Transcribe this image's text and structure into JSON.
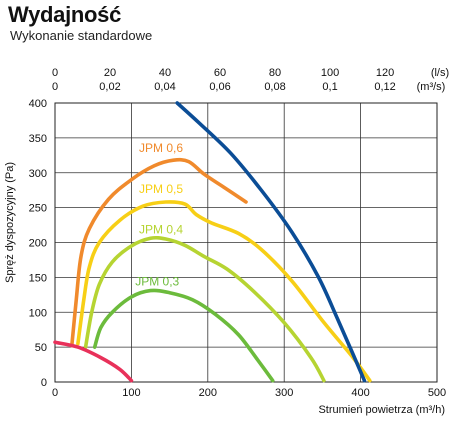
{
  "header": {
    "title": "Wydajność",
    "subtitle": "Wykonanie standardowe"
  },
  "chart_data": {
    "type": "line",
    "xlabel": "Strumień powietrza (m³/h)",
    "ylabel": "Spręż dyspozycyjny (Pa)",
    "xlim": [
      0,
      500
    ],
    "ylim": [
      0,
      400
    ],
    "x_ticks": [
      0,
      100,
      200,
      300,
      400,
      500
    ],
    "y_ticks": [
      0,
      50,
      100,
      150,
      200,
      250,
      300,
      350,
      400
    ],
    "grid": true,
    "top_axis_ls": {
      "unit": "(l/s)",
      "ticks": [
        "0",
        "20",
        "40",
        "60",
        "80",
        "100",
        "120"
      ],
      "values": [
        0,
        20,
        40,
        60,
        80,
        100,
        120
      ]
    },
    "top_axis_m3s": {
      "unit": "(m³/s)",
      "ticks": [
        "0",
        "0,02",
        "0,04",
        "0,06",
        "0,08",
        "0,1",
        "0,12"
      ],
      "values": [
        0,
        0.02,
        0.04,
        0.06,
        0.08,
        0.1,
        0.12
      ]
    },
    "series": [
      {
        "name": "JPM 0,6",
        "color": "#f08a2c",
        "points": [
          [
            22,
            52
          ],
          [
            28,
            120
          ],
          [
            34,
            180
          ],
          [
            45,
            220
          ],
          [
            70,
            262
          ],
          [
            100,
            290
          ],
          [
            130,
            310
          ],
          [
            155,
            318
          ],
          [
            175,
            316
          ],
          [
            195,
            298
          ],
          [
            220,
            280
          ],
          [
            250,
            258
          ]
        ]
      },
      {
        "name": "JPM 0,5",
        "color": "#f7cf16",
        "points": [
          [
            30,
            55
          ],
          [
            38,
            120
          ],
          [
            45,
            165
          ],
          [
            58,
            200
          ],
          [
            85,
            232
          ],
          [
            115,
            252
          ],
          [
            145,
            258
          ],
          [
            170,
            255
          ],
          [
            185,
            240
          ],
          [
            205,
            228
          ],
          [
            240,
            213
          ],
          [
            270,
            190
          ],
          [
            310,
            145
          ],
          [
            350,
            88
          ],
          [
            390,
            35
          ],
          [
            412,
            2
          ]
        ]
      },
      {
        "name": "JPM 0,4",
        "color": "#b6d432",
        "points": [
          [
            40,
            50
          ],
          [
            48,
            100
          ],
          [
            58,
            140
          ],
          [
            75,
            172
          ],
          [
            100,
            195
          ],
          [
            125,
            206
          ],
          [
            145,
            205
          ],
          [
            170,
            196
          ],
          [
            195,
            180
          ],
          [
            225,
            162
          ],
          [
            260,
            130
          ],
          [
            300,
            85
          ],
          [
            335,
            35
          ],
          [
            352,
            2
          ]
        ]
      },
      {
        "name": "JPM 0,3",
        "color": "#6cbb3c",
        "points": [
          [
            52,
            50
          ],
          [
            60,
            78
          ],
          [
            75,
            100
          ],
          [
            100,
            122
          ],
          [
            125,
            131
          ],
          [
            150,
            128
          ],
          [
            180,
            118
          ],
          [
            210,
            97
          ],
          [
            240,
            68
          ],
          [
            265,
            32
          ],
          [
            285,
            2
          ]
        ]
      },
      {
        "name": "",
        "color": "#0b4d96",
        "points": [
          [
            160,
            400
          ],
          [
            190,
            370
          ],
          [
            230,
            328
          ],
          [
            270,
            275
          ],
          [
            310,
            215
          ],
          [
            345,
            150
          ],
          [
            370,
            90
          ],
          [
            390,
            40
          ],
          [
            405,
            2
          ]
        ]
      },
      {
        "name": "",
        "color": "#e8315a",
        "points": [
          [
            0,
            57
          ],
          [
            30,
            50
          ],
          [
            60,
            35
          ],
          [
            85,
            18
          ],
          [
            100,
            2
          ]
        ]
      }
    ],
    "series_label_positions": [
      {
        "name": "JPM 0,6",
        "x": 110,
        "y": 330
      },
      {
        "name": "JPM 0,5",
        "x": 110,
        "y": 271
      },
      {
        "name": "JPM 0,4",
        "x": 110,
        "y": 213
      },
      {
        "name": "JPM 0,3",
        "x": 105,
        "y": 138
      }
    ]
  }
}
